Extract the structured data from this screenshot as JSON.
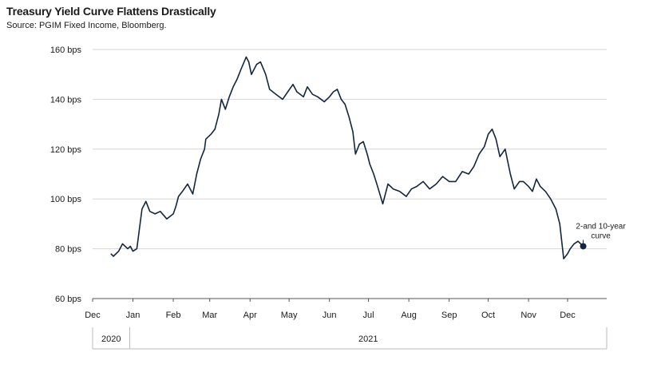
{
  "chart_data": {
    "type": "line",
    "title": "Treasury Yield Curve Flattens Drastically",
    "subtitle": "Source: PGIM Fixed Income, Bloomberg.",
    "ylabel": "",
    "xlabel": "",
    "ylim": [
      60,
      160
    ],
    "y_ticks": [
      "60 bps",
      "80 bps",
      "100 bps",
      "120 bps",
      "140 bps",
      "160 bps"
    ],
    "y_tick_values": [
      60,
      80,
      100,
      120,
      140,
      160
    ],
    "x_ticks": [
      "Dec",
      "Jan",
      "Feb",
      "Mar",
      "Apr",
      "May",
      "Jun",
      "Jul",
      "Aug",
      "Sep",
      "Oct",
      "Nov",
      "Dec"
    ],
    "x_tick_dates": [
      "2020-12-01",
      "2021-01-01",
      "2021-02-01",
      "2021-03-01",
      "2021-04-01",
      "2021-05-01",
      "2021-06-01",
      "2021-07-01",
      "2021-08-01",
      "2021-09-01",
      "2021-10-01",
      "2021-11-01",
      "2021-12-01"
    ],
    "years": [
      "2020",
      "2021"
    ],
    "grid": "horizontal",
    "line_color": "#14263f",
    "annotation": "2-and 10-year curve",
    "series": [
      {
        "name": "",
        "x": [
          "2020-12-15",
          "2020-12-17",
          "2020-12-21",
          "2020-12-24",
          "2020-12-28",
          "2020-12-30",
          "2021-01-01",
          "2021-01-04",
          "2021-01-08",
          "2021-01-11",
          "2021-01-14",
          "2021-01-18",
          "2021-01-22",
          "2021-01-27",
          "2021-02-01",
          "2021-02-03",
          "2021-02-05",
          "2021-02-08",
          "2021-02-12",
          "2021-02-16",
          "2021-02-19",
          "2021-02-22",
          "2021-02-25",
          "2021-02-26",
          "2021-03-02",
          "2021-03-05",
          "2021-03-08",
          "2021-03-10",
          "2021-03-13",
          "2021-03-16",
          "2021-03-19",
          "2021-03-22",
          "2021-03-25",
          "2021-03-29",
          "2021-03-31",
          "2021-04-02",
          "2021-04-06",
          "2021-04-09",
          "2021-04-13",
          "2021-04-16",
          "2021-04-21",
          "2021-04-26",
          "2021-04-30",
          "2021-05-04",
          "2021-05-07",
          "2021-05-12",
          "2021-05-15",
          "2021-05-19",
          "2021-05-23",
          "2021-05-28",
          "2021-06-01",
          "2021-06-04",
          "2021-06-07",
          "2021-06-10",
          "2021-06-13",
          "2021-06-16",
          "2021-06-19",
          "2021-06-21",
          "2021-06-24",
          "2021-06-27",
          "2021-06-30",
          "2021-07-02",
          "2021-07-05",
          "2021-07-08",
          "2021-07-12",
          "2021-07-16",
          "2021-07-20",
          "2021-07-25",
          "2021-07-30",
          "2021-08-03",
          "2021-08-07",
          "2021-08-12",
          "2021-08-17",
          "2021-08-22",
          "2021-08-27",
          "2021-09-01",
          "2021-09-06",
          "2021-09-11",
          "2021-09-16",
          "2021-09-20",
          "2021-09-24",
          "2021-09-28",
          "2021-10-01",
          "2021-10-04",
          "2021-10-07",
          "2021-10-10",
          "2021-10-14",
          "2021-10-18",
          "2021-10-21",
          "2021-10-25",
          "2021-10-28",
          "2021-11-01",
          "2021-11-04",
          "2021-11-07",
          "2021-11-10",
          "2021-11-14",
          "2021-11-18",
          "2021-11-22",
          "2021-11-25",
          "2021-11-28",
          "2021-12-01",
          "2021-12-03",
          "2021-12-06",
          "2021-12-09",
          "2021-12-13"
        ],
        "values": [
          78,
          77,
          79,
          82,
          80,
          81,
          79,
          80,
          96,
          99,
          95,
          94,
          95,
          92,
          94,
          97,
          101,
          103,
          106,
          102,
          110,
          116,
          120,
          124,
          126,
          128,
          134,
          140,
          136,
          141,
          145,
          148,
          152,
          157,
          155,
          150,
          154,
          155,
          150,
          144,
          142,
          140,
          143,
          146,
          143,
          141,
          145,
          142,
          141,
          139,
          141,
          143,
          144,
          140,
          138,
          133,
          127,
          118,
          122,
          123,
          118,
          114,
          110,
          105,
          98,
          106,
          104,
          103,
          101,
          104,
          105,
          107,
          104,
          106,
          109,
          107,
          107,
          111,
          110,
          113,
          118,
          121,
          126,
          128,
          124,
          117,
          120,
          110,
          104,
          107,
          107,
          105,
          103,
          108,
          105,
          103,
          100,
          96,
          90,
          76,
          78,
          80,
          82,
          83,
          81
        ]
      }
    ]
  }
}
